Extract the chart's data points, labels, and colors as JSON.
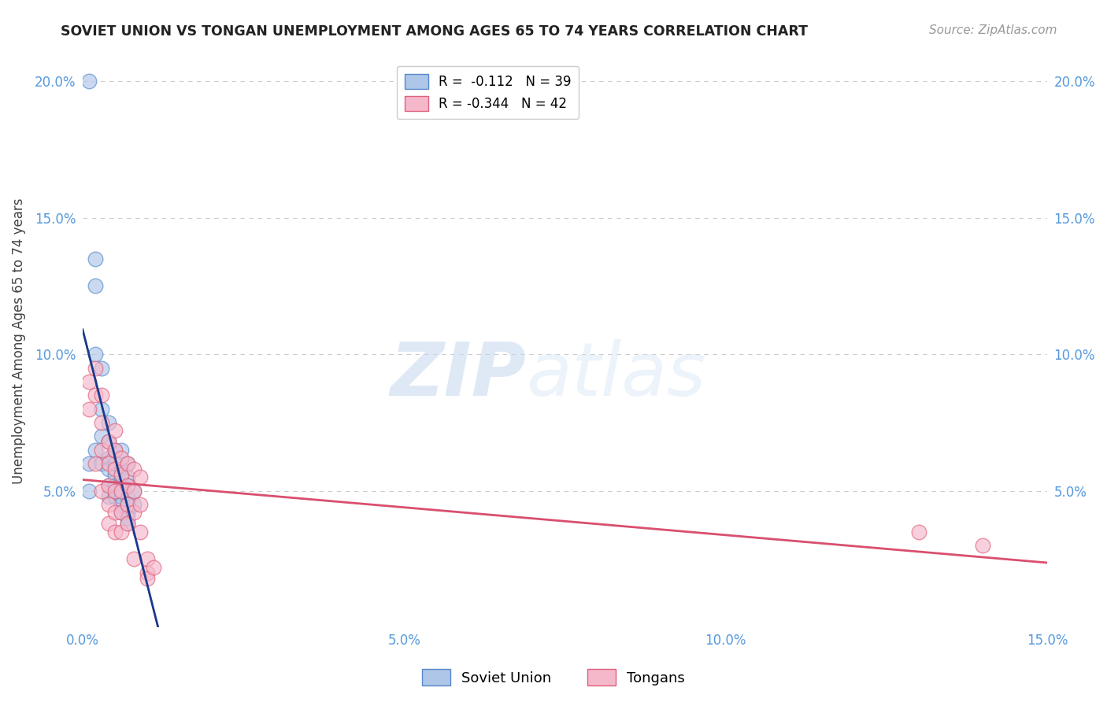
{
  "title": "SOVIET UNION VS TONGAN UNEMPLOYMENT AMONG AGES 65 TO 74 YEARS CORRELATION CHART",
  "source": "Source: ZipAtlas.com",
  "ylabel": "Unemployment Among Ages 65 to 74 years",
  "xlim": [
    0.0,
    0.15
  ],
  "ylim": [
    0.0,
    0.21
  ],
  "xticks": [
    0.0,
    0.05,
    0.1,
    0.15
  ],
  "xticklabels": [
    "0.0%",
    "5.0%",
    "10.0%",
    "15.0%"
  ],
  "yticks": [
    0.0,
    0.05,
    0.1,
    0.15,
    0.2
  ],
  "yticklabels": [
    "",
    "5.0%",
    "10.0%",
    "15.0%",
    "20.0%"
  ],
  "soviet_color": "#aec6e8",
  "soviet_edge_color": "#5588cc",
  "tongan_color": "#f5b8cb",
  "tongan_edge_color": "#e0607a",
  "soviet_line_color": "#1a3a8a",
  "tongan_line_color": "#d94f6e",
  "soviet_dash_color": "#aaaaaa",
  "r_soviet": -0.112,
  "n_soviet": 39,
  "r_tongan": -0.344,
  "n_tongan": 42,
  "soviet_x": [
    0.001,
    0.001,
    0.001,
    0.002,
    0.002,
    0.002,
    0.002,
    0.003,
    0.003,
    0.003,
    0.003,
    0.004,
    0.004,
    0.004,
    0.004,
    0.004,
    0.004,
    0.005,
    0.005,
    0.005,
    0.005,
    0.005,
    0.006,
    0.006,
    0.006,
    0.006,
    0.006,
    0.006,
    0.006,
    0.007,
    0.007,
    0.007,
    0.007,
    0.007,
    0.007,
    0.007,
    0.007,
    0.008,
    0.008
  ],
  "soviet_y": [
    0.2,
    0.06,
    0.05,
    0.135,
    0.125,
    0.1,
    0.065,
    0.095,
    0.08,
    0.07,
    0.06,
    0.075,
    0.068,
    0.062,
    0.058,
    0.052,
    0.048,
    0.065,
    0.06,
    0.056,
    0.052,
    0.048,
    0.065,
    0.058,
    0.055,
    0.052,
    0.048,
    0.045,
    0.042,
    0.06,
    0.055,
    0.052,
    0.048,
    0.045,
    0.042,
    0.04,
    0.038,
    0.05,
    0.045
  ],
  "tongan_x": [
    0.001,
    0.001,
    0.002,
    0.002,
    0.002,
    0.003,
    0.003,
    0.003,
    0.003,
    0.004,
    0.004,
    0.004,
    0.004,
    0.004,
    0.005,
    0.005,
    0.005,
    0.005,
    0.005,
    0.005,
    0.006,
    0.006,
    0.006,
    0.006,
    0.006,
    0.007,
    0.007,
    0.007,
    0.007,
    0.008,
    0.008,
    0.008,
    0.008,
    0.009,
    0.009,
    0.009,
    0.01,
    0.01,
    0.01,
    0.011,
    0.13,
    0.14
  ],
  "tongan_y": [
    0.09,
    0.08,
    0.095,
    0.085,
    0.06,
    0.085,
    0.075,
    0.065,
    0.05,
    0.068,
    0.06,
    0.052,
    0.045,
    0.038,
    0.072,
    0.065,
    0.058,
    0.05,
    0.042,
    0.035,
    0.062,
    0.056,
    0.05,
    0.042,
    0.035,
    0.06,
    0.052,
    0.045,
    0.038,
    0.058,
    0.05,
    0.042,
    0.025,
    0.055,
    0.045,
    0.035,
    0.025,
    0.02,
    0.018,
    0.022,
    0.035,
    0.03
  ],
  "watermark_zip": "ZIP",
  "watermark_atlas": "atlas",
  "background_color": "#ffffff",
  "grid_color": "#cccccc",
  "tick_color": "#5599dd",
  "title_color": "#222222",
  "source_color": "#999999",
  "ylabel_color": "#444444"
}
